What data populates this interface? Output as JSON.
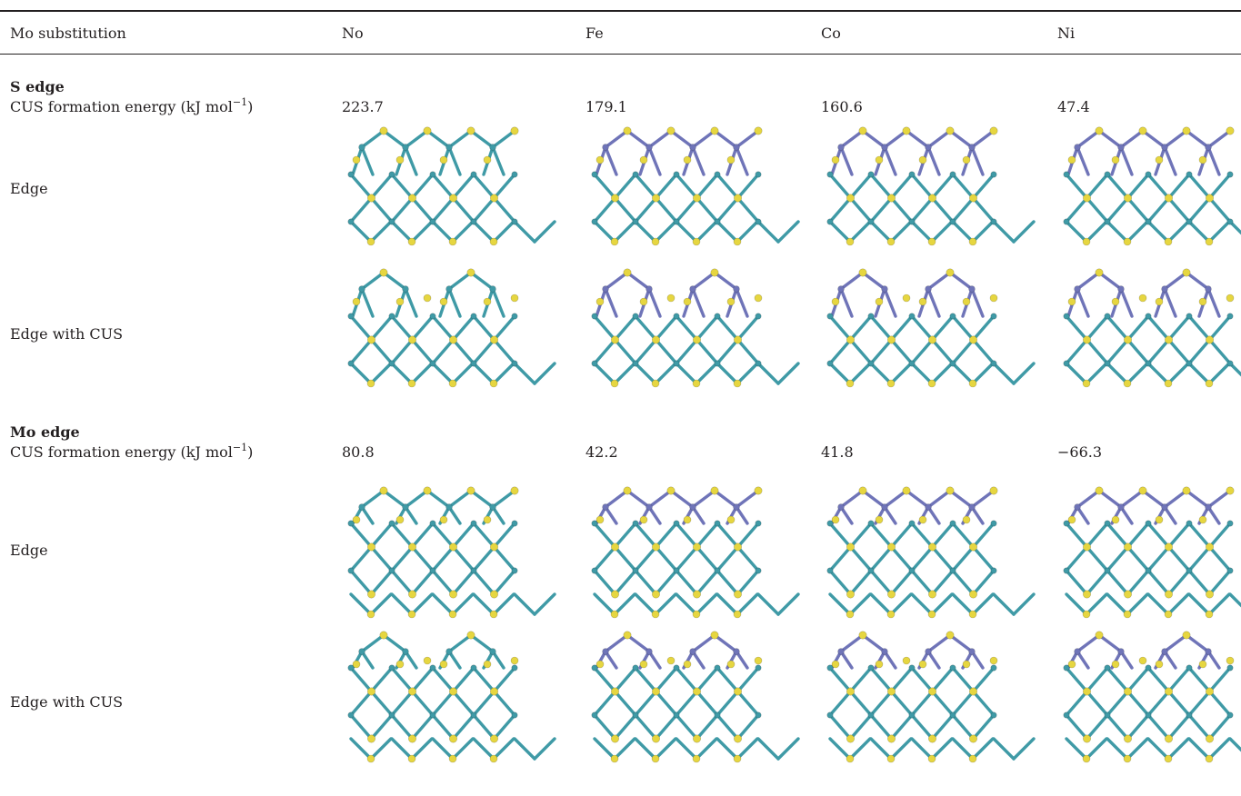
{
  "table": {
    "header": [
      "Mo substitution",
      "No",
      "Fe",
      "Co",
      "Ni"
    ],
    "sections": [
      {
        "title": "S edge",
        "energy_label": "CUS formation energy (kJ mol",
        "energy_sup": "−1",
        "energy_close": ")",
        "energies": [
          "223.7",
          "179.1",
          "160.6",
          "47.4"
        ],
        "row_labels": [
          "Edge",
          "Edge with CUS"
        ]
      },
      {
        "title": "Mo edge",
        "energy_label": "CUS formation energy (kJ mol",
        "energy_sup": "−1",
        "energy_close": ")",
        "energies": [
          "80.8",
          "42.2",
          "41.8",
          "−66.3"
        ],
        "row_labels": [
          "Edge",
          "Edge with CUS"
        ]
      }
    ]
  },
  "colors": {
    "sulfur": "#e6d640",
    "molybdenum": "#3f9aa6",
    "dopant": "#6f74b8",
    "text": "#231f20"
  },
  "structure_dopants": [
    "none",
    "Fe",
    "Co",
    "Ni"
  ]
}
